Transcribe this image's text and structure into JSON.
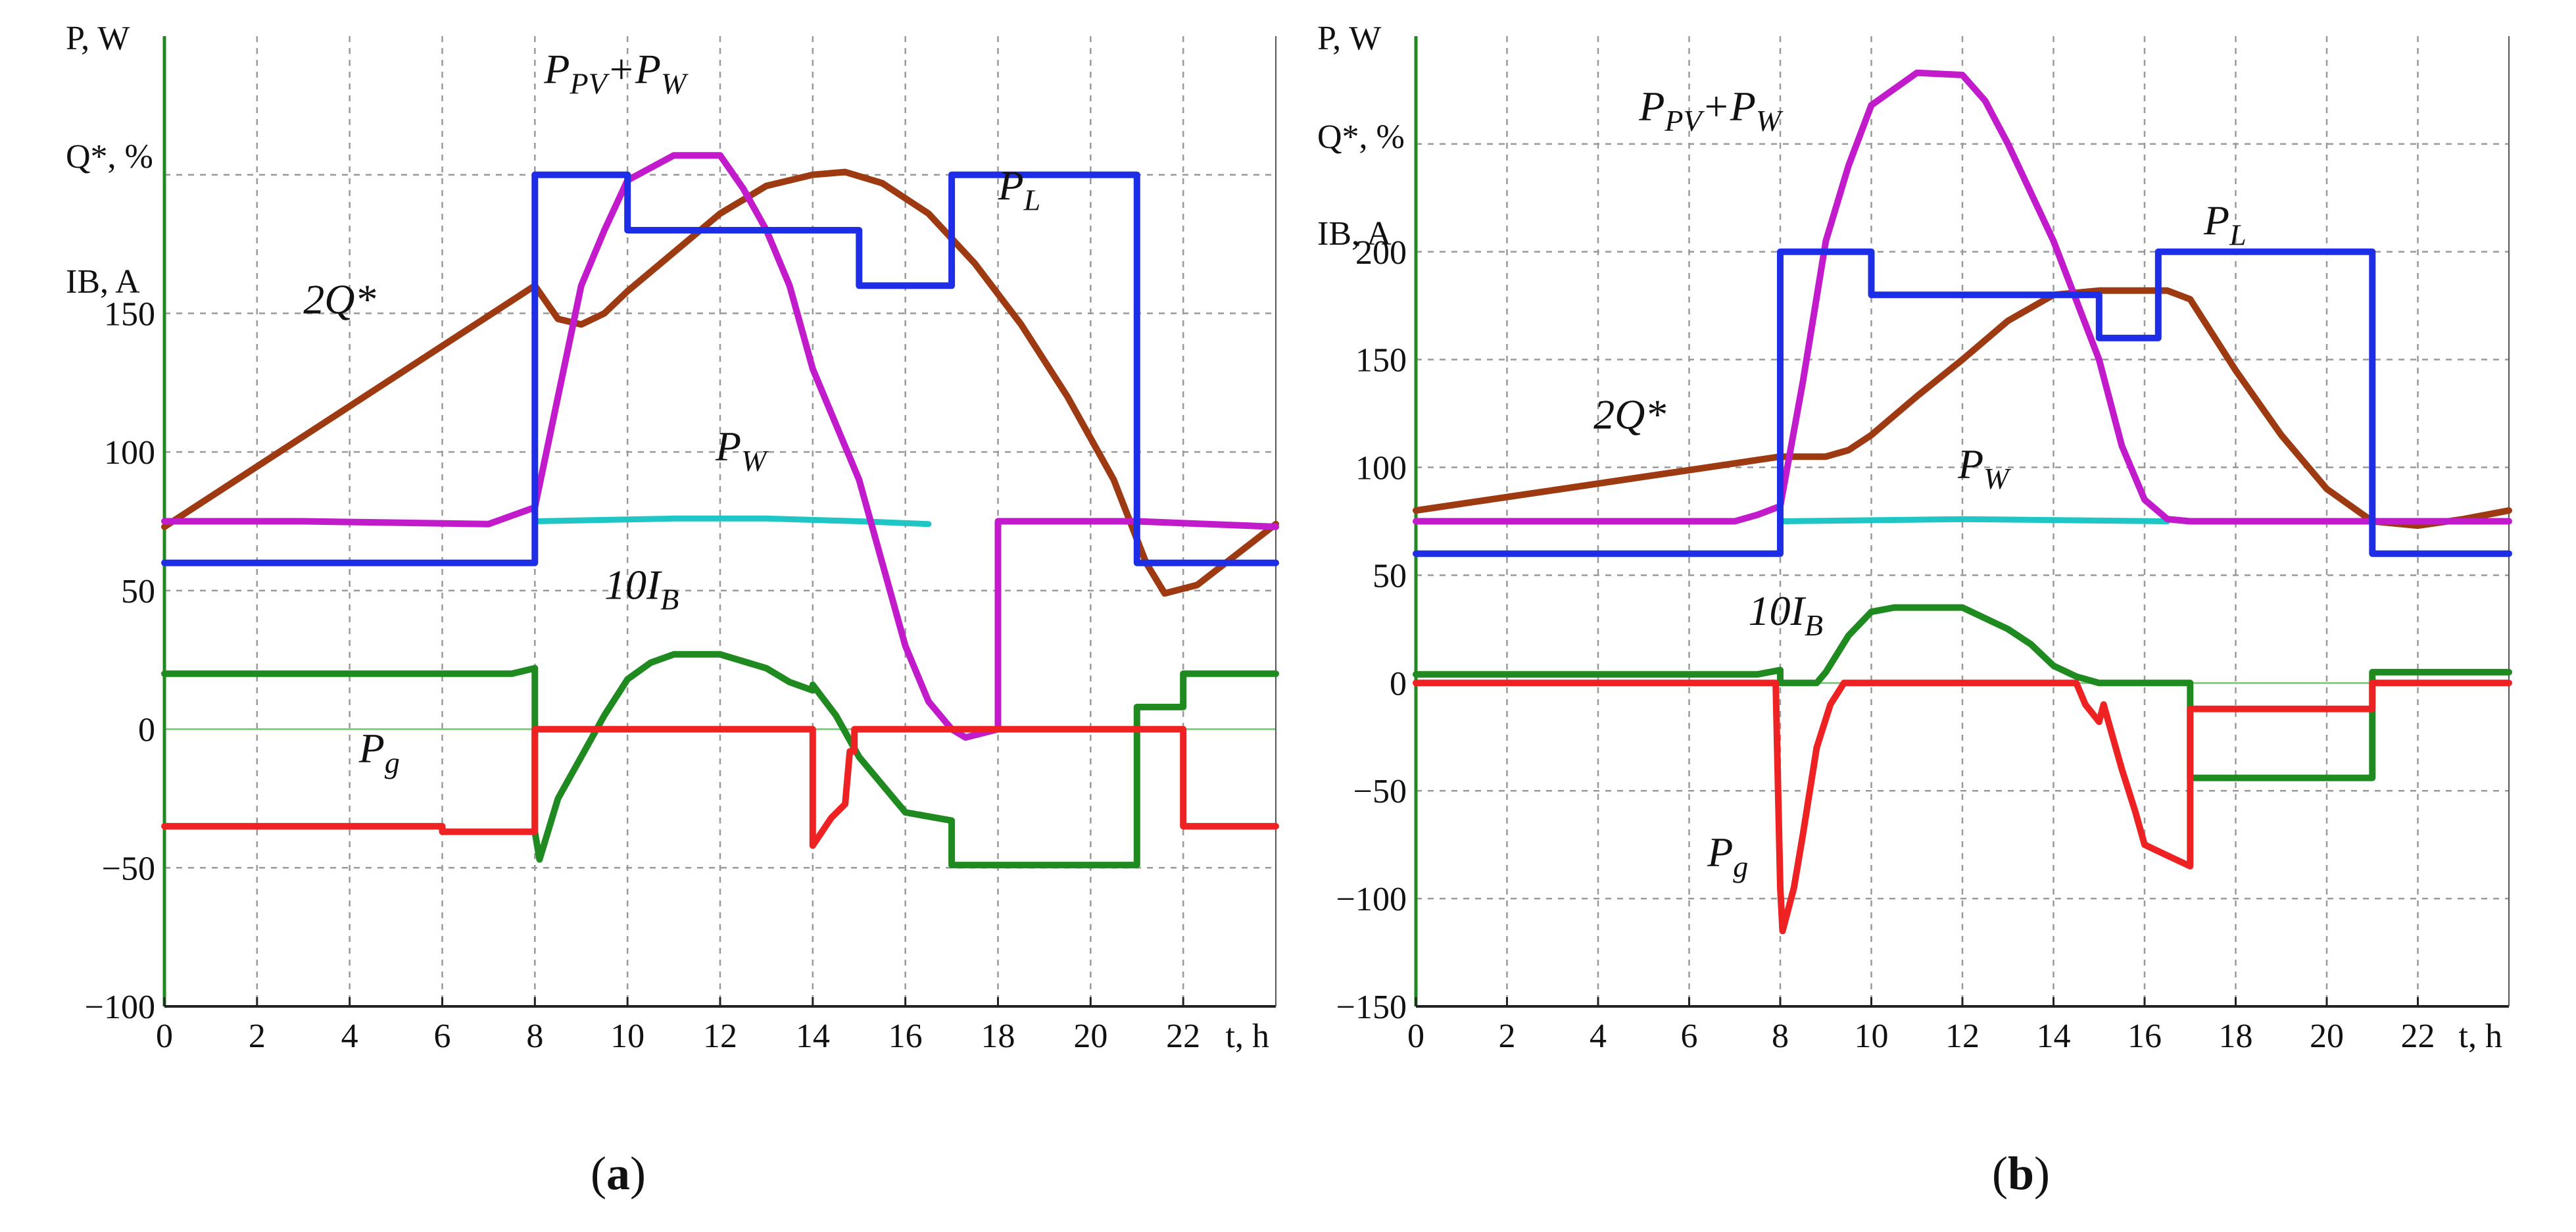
{
  "caption_a": "(a)",
  "caption_b": "(b)",
  "chart_data": [
    {
      "type": "line",
      "caption": "(a)",
      "xlabel": "t, h",
      "ylabels": [
        "P, W",
        "Q*, %",
        "IB, A"
      ],
      "xlim": [
        0,
        24
      ],
      "ylim": [
        -100,
        250
      ],
      "xticks": [
        0,
        2,
        4,
        6,
        8,
        10,
        12,
        14,
        16,
        18,
        20,
        22
      ],
      "yticks": [
        -100,
        -50,
        0,
        50,
        100,
        150
      ],
      "grid": true,
      "colors": {
        "PL": "#1e2ee6",
        "PPVW": "#c21bcc",
        "Q": "#9e3a12",
        "PW": "#20c6c6",
        "IB": "#1f8a1f",
        "Pg": "#ee2222",
        "zero": "#7ed27e"
      },
      "annotations": [
        {
          "key": "PPVW",
          "main": "P",
          "sub": "PV",
          "main2": "+P",
          "sub2": "W",
          "at": [
            8.2,
            233
          ]
        },
        {
          "key": "PL",
          "main": "P",
          "sub": "L",
          "at": [
            18.0,
            191
          ]
        },
        {
          "key": "Q",
          "main": "2Q*",
          "at": [
            3.0,
            150
          ]
        },
        {
          "key": "PW",
          "main": "P",
          "sub": "W",
          "at": [
            11.9,
            97
          ]
        },
        {
          "key": "IB",
          "main": "10I",
          "sub": "B",
          "at": [
            9.5,
            47
          ]
        },
        {
          "key": "Pg",
          "main": "P",
          "sub": "g",
          "at": [
            4.2,
            -12
          ]
        }
      ],
      "series": [
        {
          "key": "PL",
          "points": [
            [
              0,
              60
            ],
            [
              8,
              60
            ],
            [
              8,
              200
            ],
            [
              10,
              200
            ],
            [
              10,
              180
            ],
            [
              15,
              180
            ],
            [
              15,
              160
            ],
            [
              17,
              160
            ],
            [
              17,
              200
            ],
            [
              21,
              200
            ],
            [
              21,
              60
            ],
            [
              24,
              60
            ]
          ]
        },
        {
          "key": "PPVW",
          "points": [
            [
              0,
              75
            ],
            [
              3,
              75
            ],
            [
              7,
              74
            ],
            [
              7.5,
              77
            ],
            [
              8,
              80
            ],
            [
              8.5,
              120
            ],
            [
              9,
              160
            ],
            [
              9.5,
              180
            ],
            [
              10,
              198
            ],
            [
              11,
              207
            ],
            [
              12,
              207
            ],
            [
              12.5,
              195
            ],
            [
              13,
              180
            ],
            [
              13.5,
              160
            ],
            [
              14,
              130
            ],
            [
              14.5,
              110
            ],
            [
              15,
              90
            ],
            [
              15.5,
              60
            ],
            [
              16,
              30
            ],
            [
              16.5,
              10
            ],
            [
              17,
              0
            ],
            [
              17.3,
              -3
            ],
            [
              18,
              0
            ],
            [
              18,
              75
            ],
            [
              21,
              75
            ],
            [
              24,
              73
            ]
          ]
        },
        {
          "key": "Q",
          "points": [
            [
              0,
              73
            ],
            [
              8,
              160
            ],
            [
              8.5,
              148
            ],
            [
              9,
              146
            ],
            [
              9.5,
              150
            ],
            [
              10,
              158
            ],
            [
              11,
              172
            ],
            [
              12,
              186
            ],
            [
              13,
              196
            ],
            [
              14,
              200
            ],
            [
              14.7,
              201
            ],
            [
              15.5,
              197
            ],
            [
              16.5,
              186
            ],
            [
              17.5,
              168
            ],
            [
              18.5,
              146
            ],
            [
              19.5,
              120
            ],
            [
              20.5,
              90
            ],
            [
              21.2,
              60
            ],
            [
              21.6,
              49
            ],
            [
              22.3,
              52
            ],
            [
              24,
              74
            ]
          ]
        },
        {
          "key": "PW",
          "points": [
            [
              8,
              75
            ],
            [
              11,
              76
            ],
            [
              13,
              76
            ],
            [
              15,
              75
            ],
            [
              16.5,
              74
            ]
          ]
        },
        {
          "key": "IB",
          "points": [
            [
              0,
              20
            ],
            [
              7.5,
              20
            ],
            [
              8,
              22
            ],
            [
              8,
              -37
            ],
            [
              8.1,
              -47
            ],
            [
              8.5,
              -25
            ],
            [
              9,
              -10
            ],
            [
              9.5,
              5
            ],
            [
              10,
              18
            ],
            [
              10.5,
              24
            ],
            [
              11,
              27
            ],
            [
              12,
              27
            ],
            [
              13,
              22
            ],
            [
              13.5,
              17
            ],
            [
              14,
              14
            ],
            [
              14,
              16
            ],
            [
              14.5,
              5
            ],
            [
              15,
              -10
            ],
            [
              15.5,
              -20
            ],
            [
              16,
              -30
            ],
            [
              17,
              -33
            ],
            [
              17,
              -49
            ],
            [
              21,
              -49
            ],
            [
              21,
              8
            ],
            [
              22,
              8
            ],
            [
              22,
              20
            ],
            [
              24,
              20
            ]
          ]
        },
        {
          "key": "Pg",
          "points": [
            [
              0,
              -35
            ],
            [
              6,
              -35
            ],
            [
              6,
              -37
            ],
            [
              8,
              -37
            ],
            [
              8,
              0
            ],
            [
              14,
              0
            ],
            [
              14,
              -42
            ],
            [
              14.4,
              -32
            ],
            [
              14.7,
              -27
            ],
            [
              14.8,
              -8
            ],
            [
              14.9,
              -8
            ],
            [
              14.9,
              0
            ],
            [
              22,
              0
            ],
            [
              22,
              -35
            ],
            [
              24,
              -35
            ]
          ]
        }
      ]
    },
    {
      "type": "line",
      "caption": "(b)",
      "xlabel": "t, h",
      "ylabels": [
        "P, W",
        "Q*, %",
        "IB, A"
      ],
      "xlim": [
        0,
        24
      ],
      "ylim": [
        -150,
        300
      ],
      "xticks": [
        0,
        2,
        4,
        6,
        8,
        10,
        12,
        14,
        16,
        18,
        20,
        22
      ],
      "yticks": [
        -150,
        -100,
        -50,
        0,
        50,
        100,
        150,
        200
      ],
      "grid": true,
      "colors": {
        "PL": "#1e2ee6",
        "PPVW": "#c21bcc",
        "Q": "#9e3a12",
        "PW": "#20c6c6",
        "IB": "#1f8a1f",
        "Pg": "#ee2222",
        "zero": "#7ed27e"
      },
      "annotations": [
        {
          "key": "PPVW",
          "main": "P",
          "sub": "PV",
          "main2": "+P",
          "sub2": "W",
          "at": [
            4.9,
            261
          ]
        },
        {
          "key": "PL",
          "main": "P",
          "sub": "L",
          "at": [
            17.3,
            208
          ]
        },
        {
          "key": "Q",
          "main": "2Q*",
          "at": [
            3.9,
            118
          ]
        },
        {
          "key": "PW",
          "main": "P",
          "sub": "W",
          "at": [
            11.9,
            95
          ]
        },
        {
          "key": "IB",
          "main": "10I",
          "sub": "B",
          "at": [
            7.3,
            27
          ]
        },
        {
          "key": "Pg",
          "main": "P",
          "sub": "g",
          "at": [
            6.4,
            -85
          ]
        }
      ],
      "series": [
        {
          "key": "PL",
          "points": [
            [
              0,
              60
            ],
            [
              8,
              60
            ],
            [
              8,
              200
            ],
            [
              10,
              200
            ],
            [
              10,
              180
            ],
            [
              15,
              180
            ],
            [
              15,
              160
            ],
            [
              16.3,
              160
            ],
            [
              16.3,
              200
            ],
            [
              21,
              200
            ],
            [
              21,
              60
            ],
            [
              24,
              60
            ]
          ]
        },
        {
          "key": "PPVW",
          "points": [
            [
              0,
              75
            ],
            [
              7,
              75
            ],
            [
              7.5,
              78
            ],
            [
              8,
              82
            ],
            [
              8.5,
              140
            ],
            [
              9,
              205
            ],
            [
              9.5,
              240
            ],
            [
              10,
              268
            ],
            [
              11,
              283
            ],
            [
              12,
              282
            ],
            [
              12.5,
              270
            ],
            [
              13,
              250
            ],
            [
              14,
              205
            ],
            [
              15,
              150
            ],
            [
              15.5,
              110
            ],
            [
              16,
              85
            ],
            [
              16.5,
              76
            ],
            [
              17,
              75
            ],
            [
              24,
              75
            ]
          ]
        },
        {
          "key": "Q",
          "points": [
            [
              0,
              80
            ],
            [
              8,
              105
            ],
            [
              9,
              105
            ],
            [
              9.5,
              108
            ],
            [
              10,
              115
            ],
            [
              11,
              133
            ],
            [
              12,
              150
            ],
            [
              13,
              168
            ],
            [
              14,
              180
            ],
            [
              15,
              182
            ],
            [
              16.5,
              182
            ],
            [
              17,
              178
            ],
            [
              18,
              145
            ],
            [
              19,
              115
            ],
            [
              20,
              90
            ],
            [
              21,
              75
            ],
            [
              22,
              73
            ],
            [
              23,
              76
            ],
            [
              24,
              80
            ]
          ]
        },
        {
          "key": "PW",
          "points": [
            [
              8,
              75
            ],
            [
              12,
              76
            ],
            [
              16.5,
              75
            ]
          ]
        },
        {
          "key": "IB",
          "points": [
            [
              0,
              4
            ],
            [
              7.5,
              4
            ],
            [
              8,
              6
            ],
            [
              8,
              0
            ],
            [
              8.8,
              0
            ],
            [
              9,
              5
            ],
            [
              9.5,
              22
            ],
            [
              10,
              33
            ],
            [
              10.5,
              35
            ],
            [
              11,
              35
            ],
            [
              12,
              35
            ],
            [
              13,
              25
            ],
            [
              13.5,
              18
            ],
            [
              14,
              8
            ],
            [
              14.5,
              3
            ],
            [
              15,
              0
            ],
            [
              17,
              0
            ],
            [
              17,
              -44
            ],
            [
              21,
              -44
            ],
            [
              21,
              5
            ],
            [
              24,
              5
            ]
          ]
        },
        {
          "key": "Pg",
          "points": [
            [
              0,
              0
            ],
            [
              7.9,
              0
            ],
            [
              8,
              -95
            ],
            [
              8.05,
              -115
            ],
            [
              8.3,
              -95
            ],
            [
              8.5,
              -70
            ],
            [
              8.8,
              -30
            ],
            [
              9.1,
              -10
            ],
            [
              9.4,
              0
            ],
            [
              14.5,
              0
            ],
            [
              14.7,
              -10
            ],
            [
              15,
              -18
            ],
            [
              15.1,
              -10
            ],
            [
              15.3,
              -25
            ],
            [
              15.5,
              -40
            ],
            [
              15.8,
              -60
            ],
            [
              16,
              -75
            ],
            [
              16.5,
              -80
            ],
            [
              17,
              -85
            ],
            [
              17,
              -12
            ],
            [
              21,
              -12
            ],
            [
              21,
              0
            ],
            [
              24,
              0
            ]
          ]
        }
      ]
    }
  ]
}
